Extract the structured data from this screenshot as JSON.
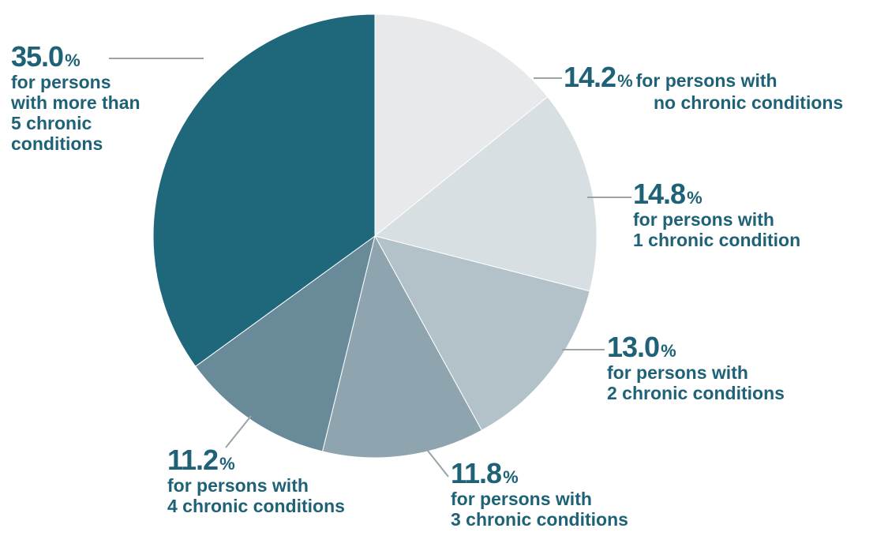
{
  "chart_data": {
    "type": "pie",
    "slices": [
      {
        "value": 14.2,
        "percent_label": "14.2",
        "percent_sign": "%",
        "desc_lines": [
          "for persons with",
          "no chronic conditions"
        ],
        "color": "#e8e9ea"
      },
      {
        "value": 14.8,
        "percent_label": "14.8",
        "percent_sign": "%",
        "desc_lines": [
          "for persons with",
          "1 chronic condition"
        ],
        "color": "#d8dfe2"
      },
      {
        "value": 13.0,
        "percent_label": "13.0",
        "percent_sign": "%",
        "desc_lines": [
          "for persons with",
          "2 chronic conditions"
        ],
        "color": "#b3c1c9"
      },
      {
        "value": 11.8,
        "percent_label": "11.8",
        "percent_sign": "%",
        "desc_lines": [
          "for persons with",
          "3 chronic conditions"
        ],
        "color": "#8ea5b0"
      },
      {
        "value": 11.2,
        "percent_label": "11.2",
        "percent_sign": "%",
        "desc_lines": [
          "for persons with",
          "4 chronic conditions"
        ],
        "color": "#698a99"
      },
      {
        "value": 35.0,
        "percent_label": "35.0",
        "percent_sign": "%",
        "desc_lines": [
          "for persons",
          "with more than",
          "5 chronic",
          "conditions"
        ],
        "color": "#1f687c"
      }
    ],
    "start_angle_deg": 0,
    "direction": "clockwise",
    "label_color": "#1f6277",
    "leader_color": "#9aa3a8"
  }
}
